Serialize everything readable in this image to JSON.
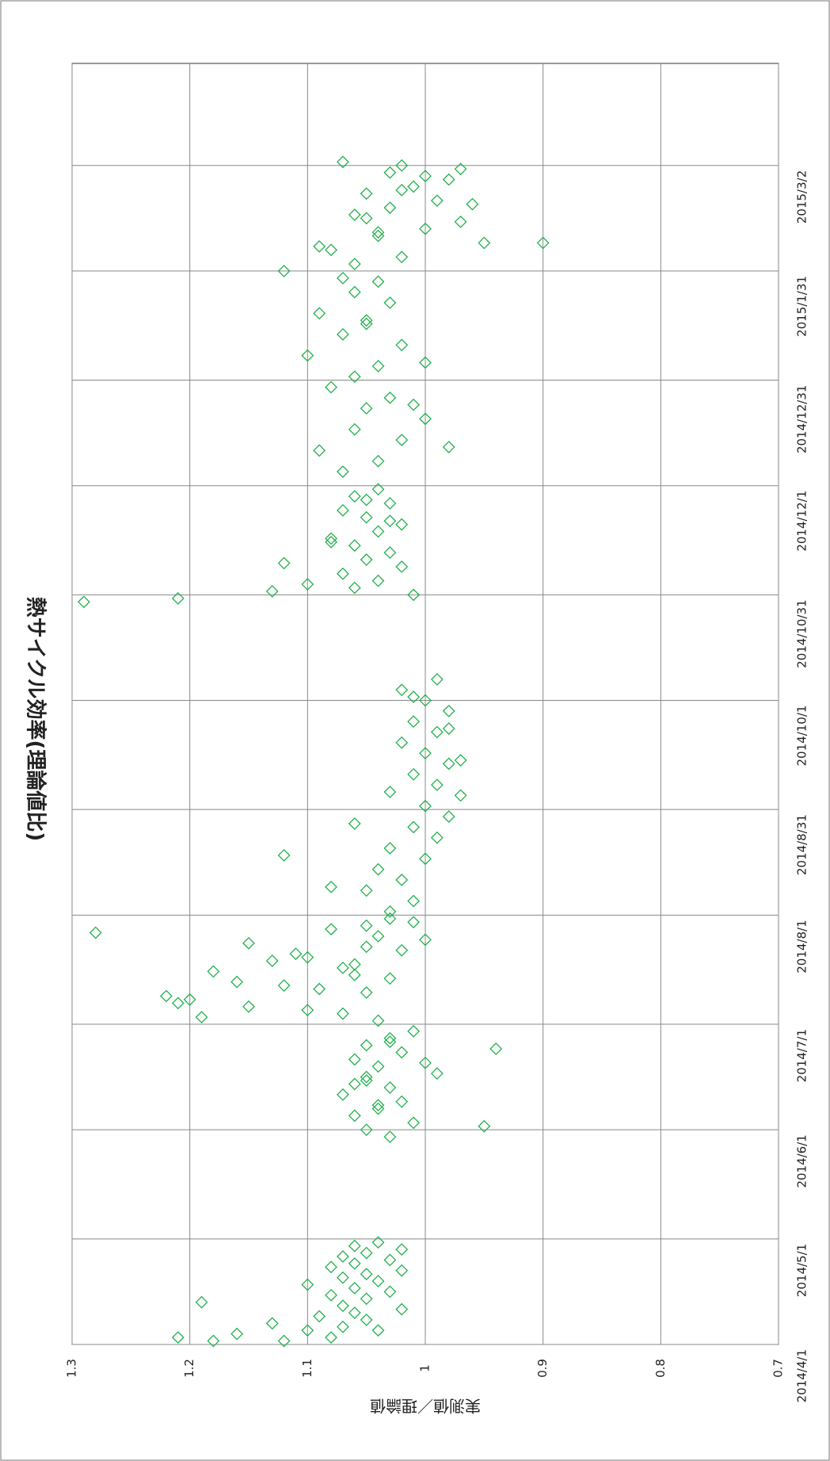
{
  "chart_data": {
    "type": "scatter",
    "title": "熱サイクル効率(理論値比)",
    "y_label": "実測値／理論値",
    "xlim": [
      "2014/4/1",
      "2015/3/31"
    ],
    "xticks": [
      "2014/4/1",
      "2014/5/1",
      "2014/6/1",
      "2014/7/1",
      "2014/8/1",
      "2014/8/31",
      "2014/10/1",
      "2014/10/31",
      "2014/12/1",
      "2014/12/31",
      "2015/1/31",
      "2015/3/2"
    ],
    "ylim": [
      0.7,
      1.3
    ],
    "yticks": [
      1.3,
      1.2,
      1.1,
      1,
      0.9,
      0.8,
      0.7
    ],
    "grid": true,
    "series": [
      {
        "name": "実測値／理論値",
        "color": "#22b14c",
        "x": [
          "2014/4/2",
          "2014/4/2",
          "2014/4/3",
          "2014/4/3",
          "2014/4/4",
          "2014/4/5",
          "2014/4/5",
          "2014/4/6",
          "2014/4/7",
          "2014/4/8",
          "2014/4/9",
          "2014/4/10",
          "2014/4/11",
          "2014/4/12",
          "2014/4/13",
          "2014/4/14",
          "2014/4/15",
          "2014/4/16",
          "2014/4/17",
          "2014/4/18",
          "2014/4/19",
          "2014/4/20",
          "2014/4/21",
          "2014/4/22",
          "2014/4/23",
          "2014/4/24",
          "2014/4/25",
          "2014/4/26",
          "2014/4/27",
          "2014/4/28",
          "2014/4/29",
          "2014/4/30",
          "2014/5/30",
          "2014/6/1",
          "2014/6/3",
          "2014/6/5",
          "2014/6/7",
          "2014/6/9",
          "2014/6/11",
          "2014/6/13",
          "2014/6/15",
          "2014/6/17",
          "2014/6/19",
          "2014/6/21",
          "2014/6/23",
          "2014/6/25",
          "2014/6/27",
          "2014/6/29",
          "2014/6/2",
          "2014/6/8",
          "2014/6/14",
          "2014/6/20",
          "2014/6/26",
          "2014/6/16",
          "2014/6/24",
          "2014/7/2",
          "2014/7/4",
          "2014/7/6",
          "2014/7/8",
          "2014/7/10",
          "2014/7/12",
          "2014/7/14",
          "2014/7/16",
          "2014/7/18",
          "2014/7/20",
          "2014/7/22",
          "2014/7/24",
          "2014/7/26",
          "2014/7/28",
          "2014/7/30",
          "2014/7/3",
          "2014/7/7",
          "2014/7/11",
          "2014/7/15",
          "2014/7/19",
          "2014/7/23",
          "2014/7/27",
          "2014/7/31",
          "2014/7/5",
          "2014/7/9",
          "2014/7/13",
          "2014/7/17",
          "2014/7/21",
          "2014/7/25",
          "2014/7/29",
          "2014/8/2",
          "2014/8/5",
          "2014/8/8",
          "2014/8/11",
          "2014/8/14",
          "2014/8/17",
          "2014/8/20",
          "2014/8/23",
          "2014/8/26",
          "2014/8/29",
          "2014/9/1",
          "2014/9/4",
          "2014/9/7",
          "2014/9/10",
          "2014/9/13",
          "2014/9/16",
          "2014/9/19",
          "2014/9/22",
          "2014/9/25",
          "2014/9/28",
          "2014/10/1",
          "2014/10/4",
          "2014/10/7",
          "2014/8/9",
          "2014/8/18",
          "2014/8/27",
          "2014/9/5",
          "2014/9/14",
          "2014/9/23",
          "2014/10/2",
          "2014/10/31",
          "2014/11/2",
          "2014/11/4",
          "2014/11/6",
          "2014/11/8",
          "2014/11/10",
          "2014/11/12",
          "2014/11/14",
          "2014/11/16",
          "2014/11/18",
          "2014/11/20",
          "2014/11/22",
          "2014/11/24",
          "2014/11/26",
          "2014/11/28",
          "2014/11/30",
          "2014/11/3",
          "2014/11/9",
          "2014/11/15",
          "2014/11/21",
          "2014/11/27",
          "2014/10/29",
          "2014/10/30",
          "2014/11/1",
          "2014/12/5",
          "2014/12/8",
          "2014/12/11",
          "2014/12/14",
          "2014/12/17",
          "2014/12/20",
          "2014/12/23",
          "2014/12/26",
          "2014/12/29",
          "2015/1/1",
          "2015/1/4",
          "2015/1/7",
          "2015/1/10",
          "2015/1/13",
          "2015/1/16",
          "2015/1/19",
          "2015/1/22",
          "2015/1/25",
          "2015/1/28",
          "2015/1/31",
          "2014/12/12",
          "2014/12/24",
          "2015/1/5",
          "2015/1/17",
          "2015/1/29",
          "2015/2/2",
          "2015/2/4",
          "2015/2/6",
          "2015/2/8",
          "2015/2/8",
          "2015/2/10",
          "2015/2/12",
          "2015/2/14",
          "2015/2/16",
          "2015/2/18",
          "2015/2/20",
          "2015/2/22",
          "2015/2/24",
          "2015/2/26",
          "2015/2/28",
          "2015/3/2",
          "2015/3/3",
          "2015/2/11",
          "2015/2/19",
          "2015/2/27",
          "2015/2/7",
          "2015/2/15",
          "2015/2/23",
          "2015/3/1"
        ],
        "values": [
          1.18,
          1.12,
          1.21,
          1.08,
          1.16,
          1.1,
          1.04,
          1.07,
          1.13,
          1.05,
          1.09,
          1.06,
          1.02,
          1.07,
          1.19,
          1.05,
          1.08,
          1.03,
          1.06,
          1.1,
          1.04,
          1.07,
          1.05,
          1.02,
          1.08,
          1.06,
          1.03,
          1.07,
          1.05,
          1.02,
          1.06,
          1.04,
          1.03,
          1.05,
          1.01,
          1.06,
          1.04,
          1.02,
          1.07,
          1.03,
          1.05,
          0.99,
          1.04,
          1.06,
          1.02,
          1.05,
          1.03,
          1.01,
          0.95,
          1.04,
          1.06,
          1.0,
          1.03,
          1.05,
          0.94,
          1.04,
          1.07,
          1.15,
          1.2,
          1.05,
          1.12,
          1.03,
          1.18,
          1.06,
          1.1,
          1.02,
          1.15,
          1.04,
          1.08,
          1.01,
          1.19,
          1.21,
          1.09,
          1.06,
          1.13,
          1.05,
          1.28,
          1.03,
          1.1,
          1.22,
          1.16,
          1.07,
          1.11,
          1.0,
          1.05,
          1.03,
          1.01,
          1.05,
          1.02,
          1.04,
          1.0,
          1.03,
          0.99,
          1.01,
          0.98,
          1.0,
          0.97,
          0.99,
          1.01,
          0.98,
          1.0,
          1.02,
          0.99,
          1.01,
          0.98,
          1.0,
          1.02,
          0.99,
          1.08,
          1.12,
          1.06,
          1.03,
          0.97,
          0.98,
          1.01,
          1.01,
          1.06,
          1.04,
          1.07,
          1.02,
          1.05,
          1.03,
          1.06,
          1.08,
          1.04,
          1.02,
          1.05,
          1.07,
          1.03,
          1.06,
          1.04,
          1.1,
          1.12,
          1.08,
          1.03,
          1.05,
          1.29,
          1.21,
          1.13,
          1.07,
          1.04,
          1.09,
          1.02,
          1.06,
          1.0,
          1.05,
          1.03,
          1.08,
          1.06,
          1.04,
          1.1,
          1.02,
          1.07,
          1.05,
          1.09,
          1.03,
          1.06,
          1.04,
          1.12,
          0.98,
          1.01,
          1.0,
          1.05,
          1.07,
          1.06,
          1.02,
          1.08,
          0.9,
          0.95,
          1.04,
          1.0,
          0.97,
          1.06,
          1.03,
          0.99,
          1.05,
          1.01,
          0.98,
          1.03,
          1.02,
          1.07,
          1.04,
          0.96,
          1.0,
          1.09,
          1.05,
          1.02,
          0.97
        ]
      }
    ]
  }
}
